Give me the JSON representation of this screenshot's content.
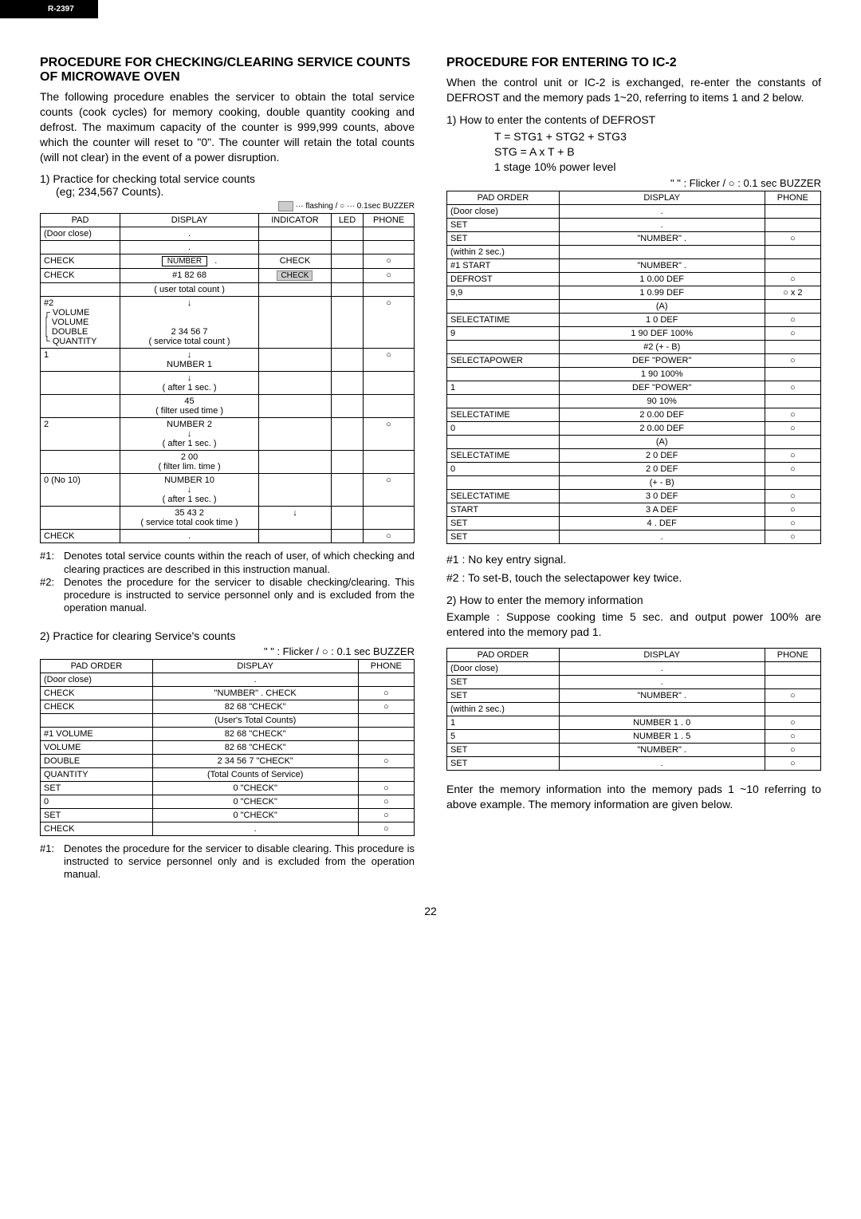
{
  "model": "R-2397",
  "page_number": "22",
  "left": {
    "heading": "PROCEDURE FOR CHECKING/CLEARING SERVICE COUNTS OF MICROWAVE OVEN",
    "intro": "The following procedure enables the servicer to obtain the total service counts (cook cycles) for memory cooking, double quantity cooking and defrost. The maximum capacity of the counter is 999,999 counts, above which the counter will reset to \"0\". The counter will retain the total counts (will not clear) in the event of a power disruption.",
    "step1_title": "1) Practice for checking total service counts",
    "step1_sub": "(eg; 234,567 Counts).",
    "legend1": "··· flashing  /  ○ ··· 0.1sec BUZZER",
    "table1": {
      "head": [
        "PAD",
        "DISPLAY",
        "INDICATOR",
        "LED",
        "PHONE"
      ],
      "rows": [
        {
          "pad": "(Door close)",
          "disp": ".",
          "ind": "",
          "led": "",
          "ph": ""
        },
        {
          "pad": "",
          "disp": ".",
          "ind": "",
          "led": "",
          "ph": ""
        },
        {
          "pad": "CHECK",
          "disp": "NUMBER    .",
          "ind": "CHECK",
          "led": "",
          "ph": "○",
          "boxed": true
        },
        {
          "pad": "CHECK",
          "disp": "#1        82 68",
          "ind": "CHECK",
          "led": "",
          "ph": "○",
          "shaded": true
        },
        {
          "pad": "",
          "disp": "( user total count )",
          "ind": "",
          "led": "",
          "ph": ""
        },
        {
          "pad": "#2\n┌ VOLUME\n│ VOLUME\n│ DOUBLE\n└ QUANTITY",
          "disp": "↓\n\n\n2 34 56 7\n( service total count )",
          "ind": "",
          "led": "",
          "ph": "○",
          "tall": true
        },
        {
          "pad": "1",
          "disp": "↓\nNUMBER       1",
          "ind": "",
          "led": "",
          "ph": "○"
        },
        {
          "pad": "",
          "disp": "↓\n( after 1 sec. )",
          "ind": "",
          "led": "",
          "ph": ""
        },
        {
          "pad": "",
          "disp": "45\n( filter used time )",
          "ind": "",
          "led": "",
          "ph": ""
        },
        {
          "pad": "2",
          "disp": "NUMBER       2\n↓\n( after 1 sec. )",
          "ind": "",
          "led": "",
          "ph": "○"
        },
        {
          "pad": "",
          "disp": "2 00\n( filter lim. time )",
          "ind": "",
          "led": "",
          "ph": ""
        },
        {
          "pad": "0 (No 10)",
          "disp": "NUMBER      10\n↓\n( after 1 sec. )",
          "ind": "",
          "led": "",
          "ph": "○"
        },
        {
          "pad": "",
          "disp": "35 43 2\n( service total cook time )",
          "ind": "↓",
          "led": "",
          "ph": ""
        },
        {
          "pad": "CHECK",
          "disp": ".",
          "ind": "",
          "led": "",
          "ph": "○"
        }
      ]
    },
    "notes1": [
      {
        "tag": "#1:",
        "txt": "Denotes total service counts within the reach of user, of which checking and clearing practices are described in this instruction manual."
      },
      {
        "tag": "#2:",
        "txt": "Denotes the procedure for the servicer to disable checking/clearing. This procedure is instructed to service personnel only and is excluded from the operation manual."
      }
    ],
    "step2_title": "2) Practice for clearing Service's counts",
    "legend2": "\"     \" : Flicker / ○ : 0.1 sec BUZZER",
    "table2": {
      "head": [
        "PAD ORDER",
        "DISPLAY",
        "PHONE"
      ],
      "rows": [
        {
          "c0": "(Door close)",
          "c1": ".",
          "c2": ""
        },
        {
          "c0": "CHECK",
          "c1": "\"NUMBER\"        .        CHECK",
          "c2": "○"
        },
        {
          "c0": "CHECK",
          "c1": "82 68        \"CHECK\"",
          "c2": "○"
        },
        {
          "c0": "",
          "c1": "(User's Total Counts)",
          "c2": ""
        },
        {
          "c0": "#1 VOLUME",
          "c1": "82 68        \"CHECK\"",
          "c2": ""
        },
        {
          "c0": "VOLUME",
          "c1": "82 68        \"CHECK\"",
          "c2": ""
        },
        {
          "c0": "DOUBLE",
          "c1": "2 34 56 7        \"CHECK\"",
          "c2": "○"
        },
        {
          "c0": "QUANTITY",
          "c1": "(Total Counts of Service)",
          "c2": ""
        },
        {
          "c0": "SET",
          "c1": "0        \"CHECK\"",
          "c2": "○"
        },
        {
          "c0": "0",
          "c1": "0        \"CHECK\"",
          "c2": "○"
        },
        {
          "c0": "SET",
          "c1": "0        \"CHECK\"",
          "c2": "○"
        },
        {
          "c0": "CHECK",
          "c1": ".",
          "c2": "○"
        }
      ]
    },
    "notes2": [
      {
        "tag": "#1:",
        "txt": "Denotes the procedure for the servicer to disable clearing. This procedure is instructed to service personnel only and is excluded from the operation manual."
      }
    ]
  },
  "right": {
    "heading": "PROCEDURE FOR ENTERING TO IC-2",
    "intro": "When the control unit or IC-2 is exchanged, re-enter the constants of DEFROST and the memory pads 1~20, referring to items 1 and 2 below.",
    "step1_title": "1) How to enter the contents of DEFROST",
    "formula1": "T = STG1 + STG2 + STG3",
    "formula2": "STG = A x T + B",
    "formula3": "1 stage 10% power level",
    "legend": "\"     \" : Flicker / ○ : 0.1 sec BUZZER",
    "table1": {
      "head": [
        "PAD ORDER",
        "DISPLAY",
        "PHONE"
      ],
      "rows": [
        {
          "c0": "(Door close)",
          "c1": ".",
          "c2": ""
        },
        {
          "c0": "SET",
          "c1": ".",
          "c2": ""
        },
        {
          "c0": "SET",
          "c1": "\"NUMBER\"        .",
          "c2": "○"
        },
        {
          "c0": "(within 2 sec.)",
          "c1": "",
          "c2": ""
        },
        {
          "c0": "#1 START",
          "c1": "\"NUMBER\"    .",
          "c2": ""
        },
        {
          "c0": "DEFROST",
          "c1": "1         0.00 DEF",
          "c2": "○"
        },
        {
          "c0": "9,9",
          "c1": "1         0.99 DEF",
          "c2": "○ x 2"
        },
        {
          "c0": "",
          "c1": "(A)",
          "c2": ""
        },
        {
          "c0": "SELECTATIME",
          "c1": "1           0 DEF",
          "c2": "○"
        },
        {
          "c0": "9",
          "c1": "1         90 DEF          100%",
          "c2": "○"
        },
        {
          "c0": "",
          "c1": "#2        (+ - B)",
          "c2": ""
        },
        {
          "c0": "SELECTAPOWER",
          "c1": "DEF     \"POWER\"",
          "c2": "○"
        },
        {
          "c0": "",
          "c1": "1         90             100%",
          "c2": ""
        },
        {
          "c0": "1",
          "c1": "DEF     \"POWER\"",
          "c2": "○"
        },
        {
          "c0": "",
          "c1": "90              10%",
          "c2": ""
        },
        {
          "c0": "SELECTATIME",
          "c1": "2        0.00 DEF",
          "c2": "○"
        },
        {
          "c0": "0",
          "c1": "2        0.00 DEF",
          "c2": "○"
        },
        {
          "c0": "",
          "c1": "(A)",
          "c2": ""
        },
        {
          "c0": "SELECTATIME",
          "c1": "2           0 DEF",
          "c2": "○"
        },
        {
          "c0": "0",
          "c1": "2           0 DEF",
          "c2": "○"
        },
        {
          "c0": "",
          "c1": "(+ - B)",
          "c2": ""
        },
        {
          "c0": "SELECTATIME",
          "c1": "3           0 DEF",
          "c2": "○"
        },
        {
          "c0": "START",
          "c1": "3          A DEF",
          "c2": "○"
        },
        {
          "c0": "SET",
          "c1": "4           . DEF",
          "c2": "○"
        },
        {
          "c0": "SET",
          "c1": ".",
          "c2": "○"
        }
      ]
    },
    "notes1_a": "#1 : No key entry signal.",
    "notes1_b": "#2 : To set-B, touch the selectapower key twice.",
    "step2_title": "2) How to enter the memory information",
    "example": "Example  :  Suppose cooking time 5 sec. and output power 100% are entered into the memory pad 1.",
    "table2": {
      "head": [
        "PAD ORDER",
        "DISPLAY",
        "PHONE"
      ],
      "rows": [
        {
          "c0": "(Door close)",
          "c1": ".",
          "c2": ""
        },
        {
          "c0": "SET",
          "c1": ".",
          "c2": ""
        },
        {
          "c0": "SET",
          "c1": "\"NUMBER\"          .",
          "c2": "○"
        },
        {
          "c0": "(within 2 sec.)",
          "c1": "",
          "c2": ""
        },
        {
          "c0": "1",
          "c1": "NUMBER 1       . 0",
          "c2": "○"
        },
        {
          "c0": "5",
          "c1": "NUMBER 1       . 5",
          "c2": "○"
        },
        {
          "c0": "SET",
          "c1": "\"NUMBER\"          .",
          "c2": "○"
        },
        {
          "c0": "SET",
          "c1": ".",
          "c2": "○"
        }
      ]
    },
    "closing": "Enter the memory information into the memory pads 1 ~10 referring to above example. The memory information are given below."
  }
}
